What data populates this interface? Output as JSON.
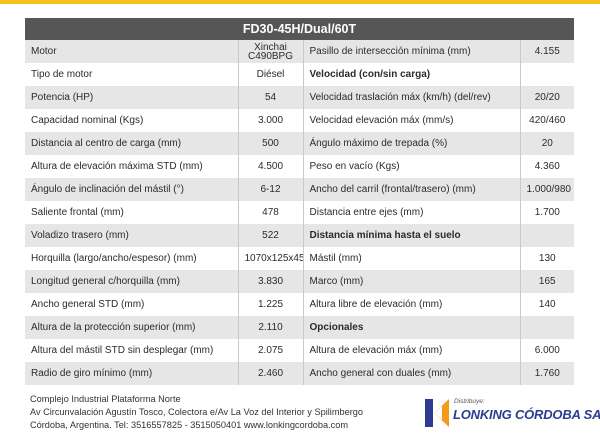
{
  "title": "FD30-45H/Dual/60T",
  "colors": {
    "accent_yellow": "#f4c21b",
    "header_bg": "#565656",
    "row_shade": "#e6e6e6",
    "brand_blue": "#2d3c8f",
    "brand_orange": "#f39a1e"
  },
  "rows": [
    {
      "l_label": "Motor",
      "l_value": "Xinchai\nC490BPG",
      "r_label": "Pasillo de intersección mínima (mm)",
      "r_value": "4.155"
    },
    {
      "l_label": "Tipo de motor",
      "l_value": "Diésel",
      "r_label": "Velocidad (con/sin carga)",
      "r_value": ""
    },
    {
      "l_label": "Potencia (HP)",
      "l_value": "54",
      "r_label": "Velocidad traslación máx (km/h) (del/rev)",
      "r_value": "20/20"
    },
    {
      "l_label": "Capacidad nominal (Kgs)",
      "l_value": "3.000",
      "r_label": "Velocidad elevación máx (mm/s)",
      "r_value": "420/460"
    },
    {
      "l_label": "Distancia al centro de carga (mm)",
      "l_value": "500",
      "r_label": "Ángulo máximo de trepada (%)",
      "r_value": "20"
    },
    {
      "l_label": "Altura de elevación máxima STD (mm)",
      "l_value": "4.500",
      "r_label": "Peso en vacío (Kgs)",
      "r_value": "4.360"
    },
    {
      "l_label": "Ángulo de inclinación del mástil (°)",
      "l_value": "6-12",
      "r_label": "Ancho del carril (frontal/trasero) (mm)",
      "r_value": "1.000/980"
    },
    {
      "l_label": "Saliente frontal (mm)",
      "l_value": "478",
      "r_label": "Distancia entre ejes (mm)",
      "r_value": "1.700"
    },
    {
      "l_label": "Voladizo trasero (mm)",
      "l_value": "522",
      "r_label": "Distancia mínima hasta el suelo",
      "r_value": ""
    },
    {
      "l_label": "Horquilla (largo/ancho/espesor) (mm)",
      "l_value": "1070x125x45",
      "r_label": "Mástil (mm)",
      "r_value": "130"
    },
    {
      "l_label": "Longitud general c/horquilla (mm)",
      "l_value": "3.830",
      "r_label": "Marco (mm)",
      "r_value": "165"
    },
    {
      "l_label": "Ancho general STD (mm)",
      "l_value": "1.225",
      "r_label": "Altura libre de elevación (mm)",
      "r_value": "140"
    },
    {
      "l_label": "Altura de la protección superior (mm)",
      "l_value": "2.110",
      "r_label": "Opcionales",
      "r_value": ""
    },
    {
      "l_label": "Altura del mástil STD sin desplegar (mm)",
      "l_value": "2.075",
      "r_label": "Altura de elevación máx (mm)",
      "r_value": "6.000"
    },
    {
      "l_label": "Radio de giro mínimo (mm)",
      "l_value": "2.460",
      "r_label": "Ancho general con duales (mm)",
      "r_value": "1.760"
    }
  ],
  "footer": {
    "line1": "Complejo Industrial Plataforma Norte",
    "line2": "Av Circunvalación Agustín Tosco, Colectora e/Av La Voz del Interior y Spilimbergo",
    "line3": "Córdoba, Argentina. Tel: 3516557825 - 3515050401  www.lonkingcordoba.com"
  },
  "logo": {
    "tagline": "Distribuye:",
    "brand": "LONKING CÓRDOBA SAS"
  }
}
